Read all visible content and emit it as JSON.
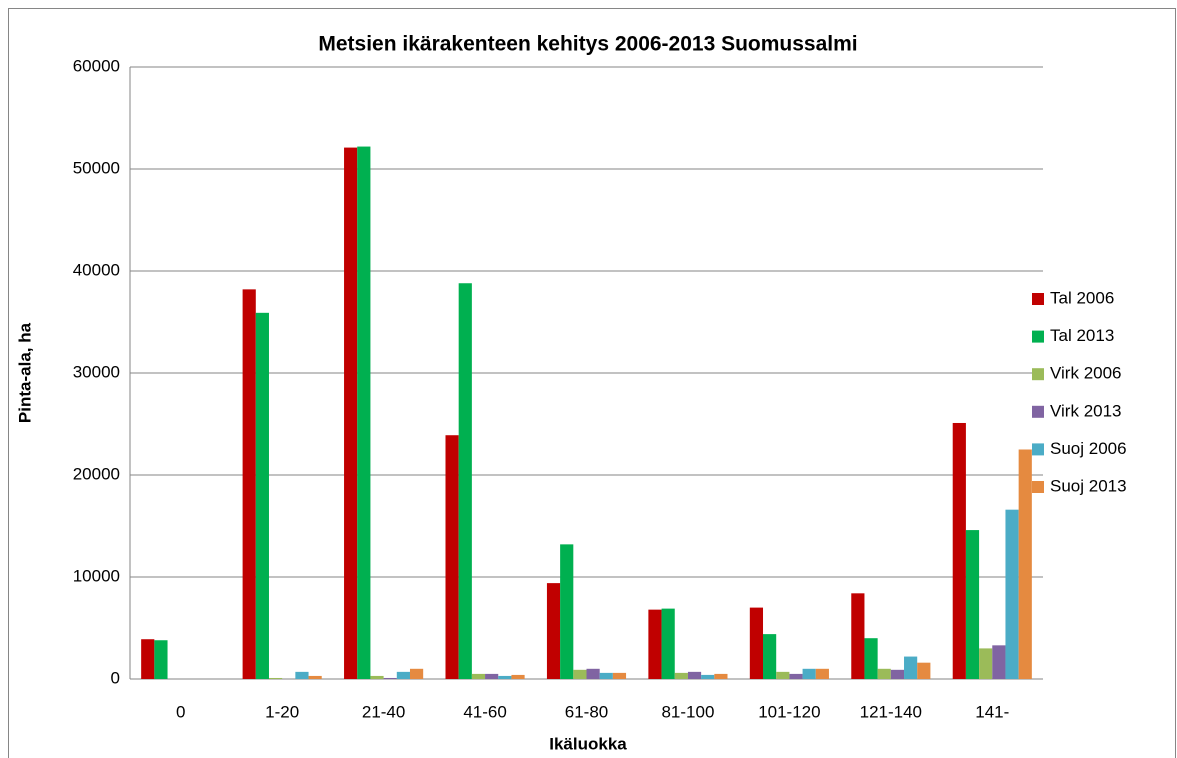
{
  "chart_data": {
    "type": "bar",
    "title": "Metsien ikärakenteen kehitys 2006-2013 Suomussalmi",
    "xlabel": "Ikäluokka",
    "ylabel": "Pinta-ala, ha",
    "categories": [
      "0",
      "1-20",
      "21-40",
      "41-60",
      "61-80",
      "81-100",
      "101-120",
      "121-140",
      "141-"
    ],
    "series": [
      {
        "name": "Tal 2006",
        "color": "#c00000",
        "values": [
          3900,
          38200,
          52100,
          23900,
          9400,
          6800,
          7000,
          8400,
          25100
        ]
      },
      {
        "name": "Tal 2013",
        "color": "#00b050",
        "values": [
          3800,
          35900,
          52200,
          38800,
          13200,
          6900,
          4400,
          4000,
          14600
        ]
      },
      {
        "name": "Virk 2006",
        "color": "#9bbb59",
        "values": [
          0,
          100,
          300,
          500,
          900,
          600,
          700,
          1000,
          3000
        ]
      },
      {
        "name": "Virk 2013",
        "color": "#8064a2",
        "values": [
          0,
          0,
          100,
          500,
          1000,
          700,
          500,
          900,
          3300
        ]
      },
      {
        "name": "Suoj 2006",
        "color": "#4bacc6",
        "values": [
          0,
          700,
          700,
          300,
          600,
          400,
          1000,
          2200,
          16600
        ]
      },
      {
        "name": "Suoj 2013",
        "color": "#e58a40",
        "values": [
          0,
          300,
          1000,
          400,
          600,
          500,
          1000,
          1600,
          22500
        ]
      }
    ],
    "ylim": [
      0,
      60000
    ],
    "yticks": [
      0,
      10000,
      20000,
      30000,
      40000,
      50000,
      60000
    ],
    "grid": true,
    "legend": "right"
  }
}
